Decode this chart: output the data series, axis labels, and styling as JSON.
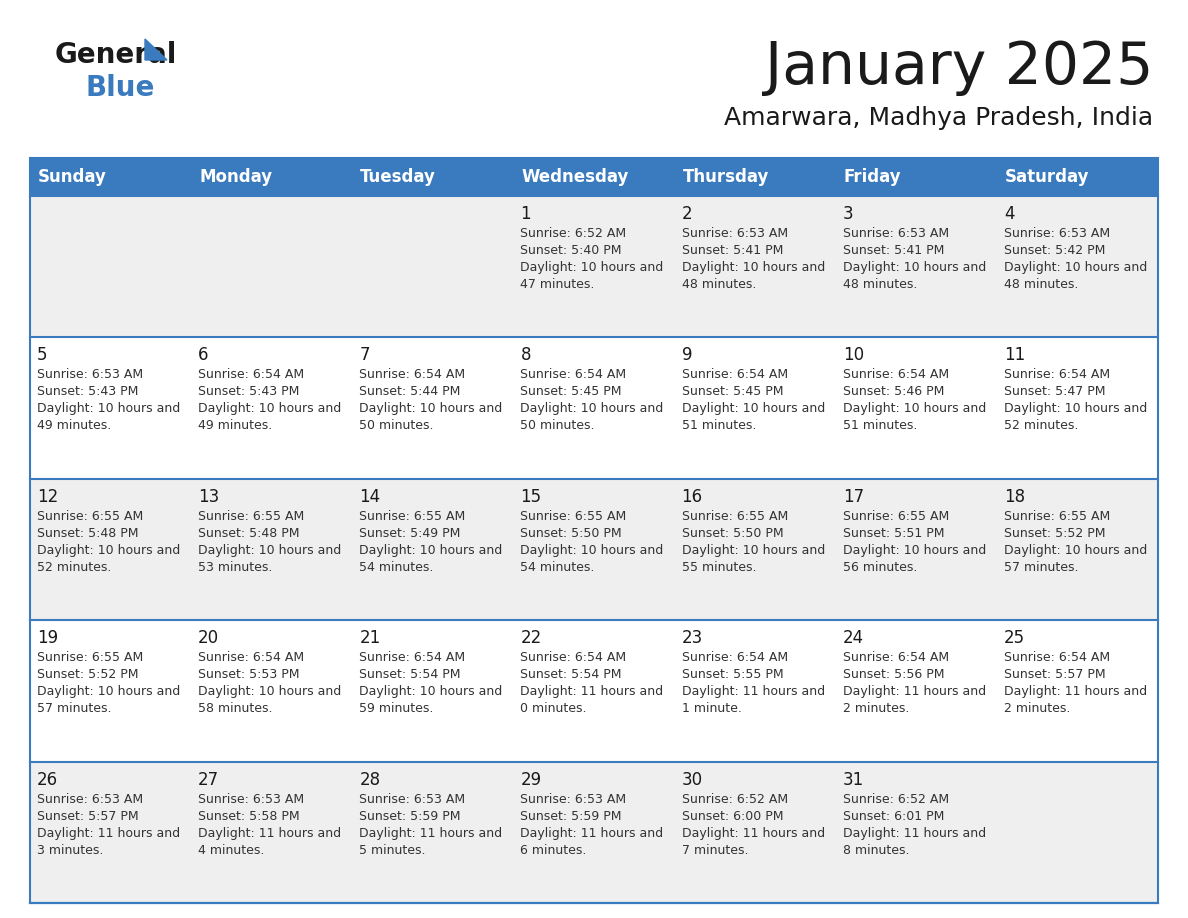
{
  "title": "January 2025",
  "subtitle": "Amarwara, Madhya Pradesh, India",
  "header_bg_color": "#3a7abf",
  "header_text_color": "#ffffff",
  "weekdays": [
    "Sunday",
    "Monday",
    "Tuesday",
    "Wednesday",
    "Thursday",
    "Friday",
    "Saturday"
  ],
  "title_color": "#1a1a1a",
  "subtitle_color": "#1a1a1a",
  "alt_row_color": "#efefef",
  "white_color": "#ffffff",
  "border_color": "#3a7abf",
  "day_number_color": "#1a1a1a",
  "cell_text_color": "#333333",
  "logo_general_color": "#1a1a1a",
  "logo_blue_color": "#3a7abf",
  "logo_triangle_color": "#3a7abf",
  "calendar_data": [
    [
      null,
      null,
      null,
      {
        "day": 1,
        "sunrise": "6:52 AM",
        "sunset": "5:40 PM",
        "daylight": "10 hours and 47 minutes."
      },
      {
        "day": 2,
        "sunrise": "6:53 AM",
        "sunset": "5:41 PM",
        "daylight": "10 hours and 48 minutes."
      },
      {
        "day": 3,
        "sunrise": "6:53 AM",
        "sunset": "5:41 PM",
        "daylight": "10 hours and 48 minutes."
      },
      {
        "day": 4,
        "sunrise": "6:53 AM",
        "sunset": "5:42 PM",
        "daylight": "10 hours and 48 minutes."
      }
    ],
    [
      {
        "day": 5,
        "sunrise": "6:53 AM",
        "sunset": "5:43 PM",
        "daylight": "10 hours and 49 minutes."
      },
      {
        "day": 6,
        "sunrise": "6:54 AM",
        "sunset": "5:43 PM",
        "daylight": "10 hours and 49 minutes."
      },
      {
        "day": 7,
        "sunrise": "6:54 AM",
        "sunset": "5:44 PM",
        "daylight": "10 hours and 50 minutes."
      },
      {
        "day": 8,
        "sunrise": "6:54 AM",
        "sunset": "5:45 PM",
        "daylight": "10 hours and 50 minutes."
      },
      {
        "day": 9,
        "sunrise": "6:54 AM",
        "sunset": "5:45 PM",
        "daylight": "10 hours and 51 minutes."
      },
      {
        "day": 10,
        "sunrise": "6:54 AM",
        "sunset": "5:46 PM",
        "daylight": "10 hours and 51 minutes."
      },
      {
        "day": 11,
        "sunrise": "6:54 AM",
        "sunset": "5:47 PM",
        "daylight": "10 hours and 52 minutes."
      }
    ],
    [
      {
        "day": 12,
        "sunrise": "6:55 AM",
        "sunset": "5:48 PM",
        "daylight": "10 hours and 52 minutes."
      },
      {
        "day": 13,
        "sunrise": "6:55 AM",
        "sunset": "5:48 PM",
        "daylight": "10 hours and 53 minutes."
      },
      {
        "day": 14,
        "sunrise": "6:55 AM",
        "sunset": "5:49 PM",
        "daylight": "10 hours and 54 minutes."
      },
      {
        "day": 15,
        "sunrise": "6:55 AM",
        "sunset": "5:50 PM",
        "daylight": "10 hours and 54 minutes."
      },
      {
        "day": 16,
        "sunrise": "6:55 AM",
        "sunset": "5:50 PM",
        "daylight": "10 hours and 55 minutes."
      },
      {
        "day": 17,
        "sunrise": "6:55 AM",
        "sunset": "5:51 PM",
        "daylight": "10 hours and 56 minutes."
      },
      {
        "day": 18,
        "sunrise": "6:55 AM",
        "sunset": "5:52 PM",
        "daylight": "10 hours and 57 minutes."
      }
    ],
    [
      {
        "day": 19,
        "sunrise": "6:55 AM",
        "sunset": "5:52 PM",
        "daylight": "10 hours and 57 minutes."
      },
      {
        "day": 20,
        "sunrise": "6:54 AM",
        "sunset": "5:53 PM",
        "daylight": "10 hours and 58 minutes."
      },
      {
        "day": 21,
        "sunrise": "6:54 AM",
        "sunset": "5:54 PM",
        "daylight": "10 hours and 59 minutes."
      },
      {
        "day": 22,
        "sunrise": "6:54 AM",
        "sunset": "5:54 PM",
        "daylight": "11 hours and 0 minutes."
      },
      {
        "day": 23,
        "sunrise": "6:54 AM",
        "sunset": "5:55 PM",
        "daylight": "11 hours and 1 minute."
      },
      {
        "day": 24,
        "sunrise": "6:54 AM",
        "sunset": "5:56 PM",
        "daylight": "11 hours and 2 minutes."
      },
      {
        "day": 25,
        "sunrise": "6:54 AM",
        "sunset": "5:57 PM",
        "daylight": "11 hours and 2 minutes."
      }
    ],
    [
      {
        "day": 26,
        "sunrise": "6:53 AM",
        "sunset": "5:57 PM",
        "daylight": "11 hours and 3 minutes."
      },
      {
        "day": 27,
        "sunrise": "6:53 AM",
        "sunset": "5:58 PM",
        "daylight": "11 hours and 4 minutes."
      },
      {
        "day": 28,
        "sunrise": "6:53 AM",
        "sunset": "5:59 PM",
        "daylight": "11 hours and 5 minutes."
      },
      {
        "day": 29,
        "sunrise": "6:53 AM",
        "sunset": "5:59 PM",
        "daylight": "11 hours and 6 minutes."
      },
      {
        "day": 30,
        "sunrise": "6:52 AM",
        "sunset": "6:00 PM",
        "daylight": "11 hours and 7 minutes."
      },
      {
        "day": 31,
        "sunrise": "6:52 AM",
        "sunset": "6:01 PM",
        "daylight": "11 hours and 8 minutes."
      },
      null
    ]
  ]
}
